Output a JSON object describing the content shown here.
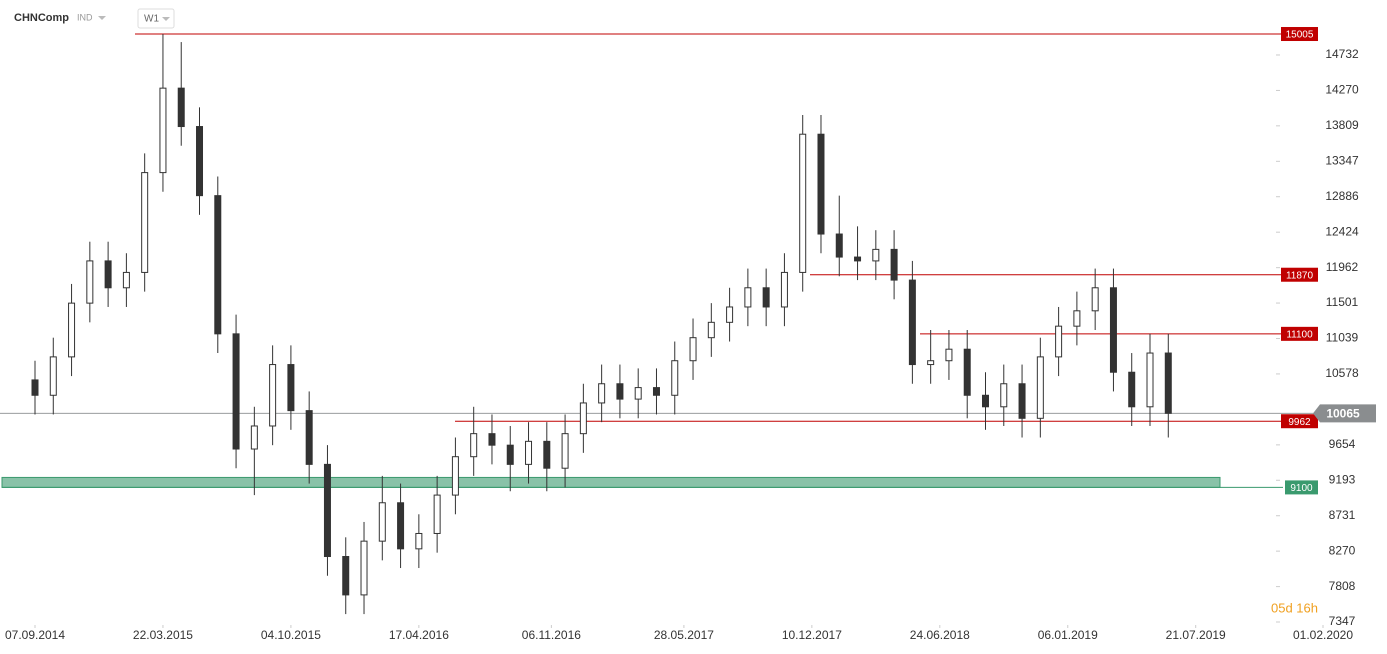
{
  "chart_data": {
    "type": "candlestick",
    "symbol": "CHNComp",
    "instrument_type": "IND",
    "timeframe": "W1",
    "countdown": "05d 16h",
    "x": [
      "07.09.2014",
      "05.10.2014",
      "02.11.2014",
      "30.11.2014",
      "28.12.2014",
      "25.01.2015",
      "22.02.2015",
      "22.03.2015",
      "19.04.2015",
      "17.05.2015",
      "14.06.2015",
      "12.07.2015",
      "09.08.2015",
      "06.09.2015",
      "04.10.2015",
      "01.11.2015",
      "29.11.2015",
      "27.12.2015",
      "24.01.2016",
      "21.02.2016",
      "20.03.2016",
      "17.04.2016",
      "15.05.2016",
      "12.06.2016",
      "10.07.2016",
      "07.08.2016",
      "04.09.2016",
      "02.10.2016",
      "30.10.2016",
      "27.11.2016",
      "25.12.2016",
      "22.01.2017",
      "19.02.2017",
      "19.03.2017",
      "16.04.2017",
      "14.05.2017",
      "11.06.2017",
      "09.07.2017",
      "06.08.2017",
      "03.09.2017",
      "01.10.2017",
      "29.10.2017",
      "26.11.2017",
      "24.12.2017",
      "21.01.2018",
      "18.02.2018",
      "18.03.2018",
      "15.04.2018",
      "13.05.2018",
      "10.06.2018",
      "08.07.2018",
      "05.08.2018",
      "02.09.2018",
      "30.09.2018",
      "28.10.2018",
      "25.11.2018",
      "23.12.2018",
      "20.01.2019",
      "17.02.2019",
      "17.03.2019",
      "14.04.2019",
      "12.05.2019",
      "09.06.2019"
    ],
    "open": [
      10500,
      10300,
      10800,
      11500,
      12050,
      11700,
      11900,
      13200,
      14300,
      13800,
      12900,
      11100,
      9600,
      9900,
      10700,
      10100,
      9400,
      8200,
      7700,
      8400,
      8900,
      8300,
      8500,
      9000,
      9500,
      9800,
      9650,
      9400,
      9700,
      9350,
      9800,
      10200,
      10450,
      10250,
      10400,
      10300,
      10750,
      11050,
      11250,
      11450,
      11700,
      11450,
      11900,
      13700,
      12400,
      12100,
      12050,
      12200,
      11800,
      10700,
      10750,
      10900,
      10300,
      10150,
      10450,
      10000,
      10800,
      11200,
      11400,
      11700,
      10600,
      10150,
      10850
    ],
    "high": [
      10750,
      11050,
      11750,
      12300,
      12300,
      12150,
      13450,
      15005,
      14900,
      14050,
      13150,
      11350,
      10150,
      10950,
      10950,
      10350,
      9650,
      8450,
      8650,
      9250,
      9150,
      8750,
      9250,
      9750,
      10150,
      10050,
      9900,
      9950,
      9950,
      10050,
      10450,
      10700,
      10700,
      10650,
      10650,
      11000,
      11300,
      11500,
      11700,
      11950,
      11950,
      12150,
      13950,
      13950,
      12900,
      12500,
      12450,
      12450,
      12050,
      11150,
      11150,
      11150,
      10600,
      10700,
      10700,
      11050,
      11450,
      11650,
      11950,
      11950,
      10850,
      11100,
      11100
    ],
    "low": [
      10050,
      10050,
      10550,
      11250,
      11450,
      11450,
      11650,
      12950,
      13550,
      12650,
      10850,
      9350,
      9000,
      9650,
      9850,
      9150,
      7950,
      7450,
      7450,
      8150,
      8050,
      8050,
      8250,
      8750,
      9250,
      9400,
      9050,
      9150,
      9050,
      9100,
      9550,
      9950,
      10000,
      10000,
      10050,
      10050,
      10500,
      10800,
      11000,
      11200,
      11200,
      11200,
      11650,
      12150,
      11850,
      11800,
      11800,
      11550,
      10450,
      10450,
      10500,
      10000,
      9850,
      9900,
      9750,
      9750,
      10550,
      10950,
      11150,
      10350,
      9900,
      9900,
      9750
    ],
    "close": [
      10300,
      10800,
      11500,
      12050,
      11700,
      11900,
      13200,
      14300,
      13800,
      12900,
      11100,
      9600,
      9900,
      10700,
      10100,
      9400,
      8200,
      7700,
      8400,
      8900,
      8300,
      8500,
      9000,
      9500,
      9800,
      9650,
      9400,
      9700,
      9350,
      9800,
      10200,
      10450,
      10250,
      10400,
      10300,
      10750,
      11050,
      11250,
      11450,
      11700,
      11450,
      11900,
      13700,
      12400,
      12100,
      12050,
      12200,
      11800,
      10700,
      10750,
      10900,
      10300,
      10150,
      10450,
      10000,
      10800,
      11200,
      11400,
      11700,
      10600,
      10150,
      10850,
      10065
    ],
    "up_color": "#ffffff",
    "down_color": "#333333",
    "xlim": [
      "07.09.2014",
      "01.02.2020"
    ],
    "xticks": [
      "07.09.2014",
      "22.03.2015",
      "04.10.2015",
      "17.04.2016",
      "06.11.2016",
      "28.05.2017",
      "10.12.2017",
      "24.06.2018",
      "06.01.2019",
      "21.07.2019",
      "01.02.2020"
    ],
    "ylim": [
      7308,
      15448
    ],
    "yticks": [
      14732,
      14270,
      13809,
      13347,
      12886,
      12424,
      11962,
      11501,
      11039,
      10578,
      9654,
      9193,
      8731,
      8270,
      7808,
      7347
    ],
    "levels": [
      {
        "value": 15005,
        "color": "#c00000"
      },
      {
        "value": 11870,
        "color": "#c00000"
      },
      {
        "value": 11100,
        "color": "#c00000"
      },
      {
        "value": 9962,
        "color": "#c00000"
      }
    ],
    "zone": {
      "value": 9100,
      "top": 9230,
      "color": "#3a9a6e"
    },
    "last_price": {
      "value": 10065,
      "color": "#8a8d8f"
    }
  }
}
